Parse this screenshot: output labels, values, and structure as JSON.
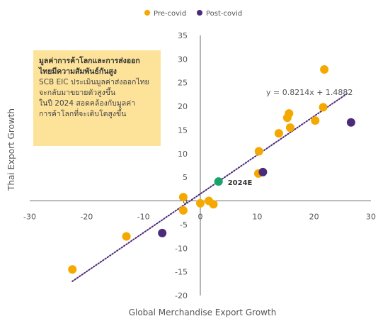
{
  "chart_data": {
    "type": "scatter",
    "xlabel": "Global Merchandise Export Growth",
    "ylabel": "Thai Export Growth",
    "xlim": [
      -30,
      30
    ],
    "ylim": [
      -20,
      35
    ],
    "x_ticks": [
      -30,
      -20,
      -10,
      0,
      10,
      20,
      30
    ],
    "y_ticks": [
      -20,
      -15,
      -10,
      -5,
      0,
      5,
      10,
      15,
      20,
      25,
      30,
      35
    ],
    "legend_position": "top",
    "series": [
      {
        "name": "Pre-covid",
        "color": "#f5a800",
        "points": [
          {
            "x": -22.5,
            "y": -14.5
          },
          {
            "x": -13,
            "y": -7.5
          },
          {
            "x": -3,
            "y": 0.8
          },
          {
            "x": -3,
            "y": -2
          },
          {
            "x": 0,
            "y": -0.5
          },
          {
            "x": 1.5,
            "y": 0
          },
          {
            "x": 2.3,
            "y": -0.7
          },
          {
            "x": 10.3,
            "y": 10.5
          },
          {
            "x": 10.2,
            "y": 5.8
          },
          {
            "x": 13.8,
            "y": 14.3
          },
          {
            "x": 15.3,
            "y": 17.6
          },
          {
            "x": 15.6,
            "y": 18.5
          },
          {
            "x": 15.8,
            "y": 15.5
          },
          {
            "x": 20.2,
            "y": 17.0
          },
          {
            "x": 21.6,
            "y": 19.8
          },
          {
            "x": 21.8,
            "y": 27.8
          }
        ]
      },
      {
        "name": "Post-covid",
        "color": "#4b2a7a",
        "points": [
          {
            "x": -6.7,
            "y": -6.8
          },
          {
            "x": 11.0,
            "y": 6.1
          },
          {
            "x": 26.5,
            "y": 16.6
          }
        ]
      },
      {
        "name": "",
        "color": "#1aa36b",
        "points": [
          {
            "x": 3.2,
            "y": 4.1,
            "label": "2024E"
          }
        ]
      }
    ],
    "trendline": {
      "slope": 0.8214,
      "intercept": 1.4882,
      "x_range": [
        -22.5,
        26
      ],
      "color": "#4b2a7a",
      "equation": "y = 0.8214x + 1.4882"
    },
    "annotation": {
      "title_lines": [
        "มูลค่าการค้าโลกและการส่งออก",
        "ไทยมีความสัมพันธ์กันสูง"
      ],
      "body_lines": [
        "SCB EIC ประเมินมูลค่าส่งออกไทย",
        "จะกลับมาขยายตัวสูงขึ้น",
        "ในปี 2024 สอดคล้องกับมูลค่า",
        "การค้าโลกที่จะเติบโตสูงขึ้น"
      ],
      "background": "#fde29a"
    }
  }
}
